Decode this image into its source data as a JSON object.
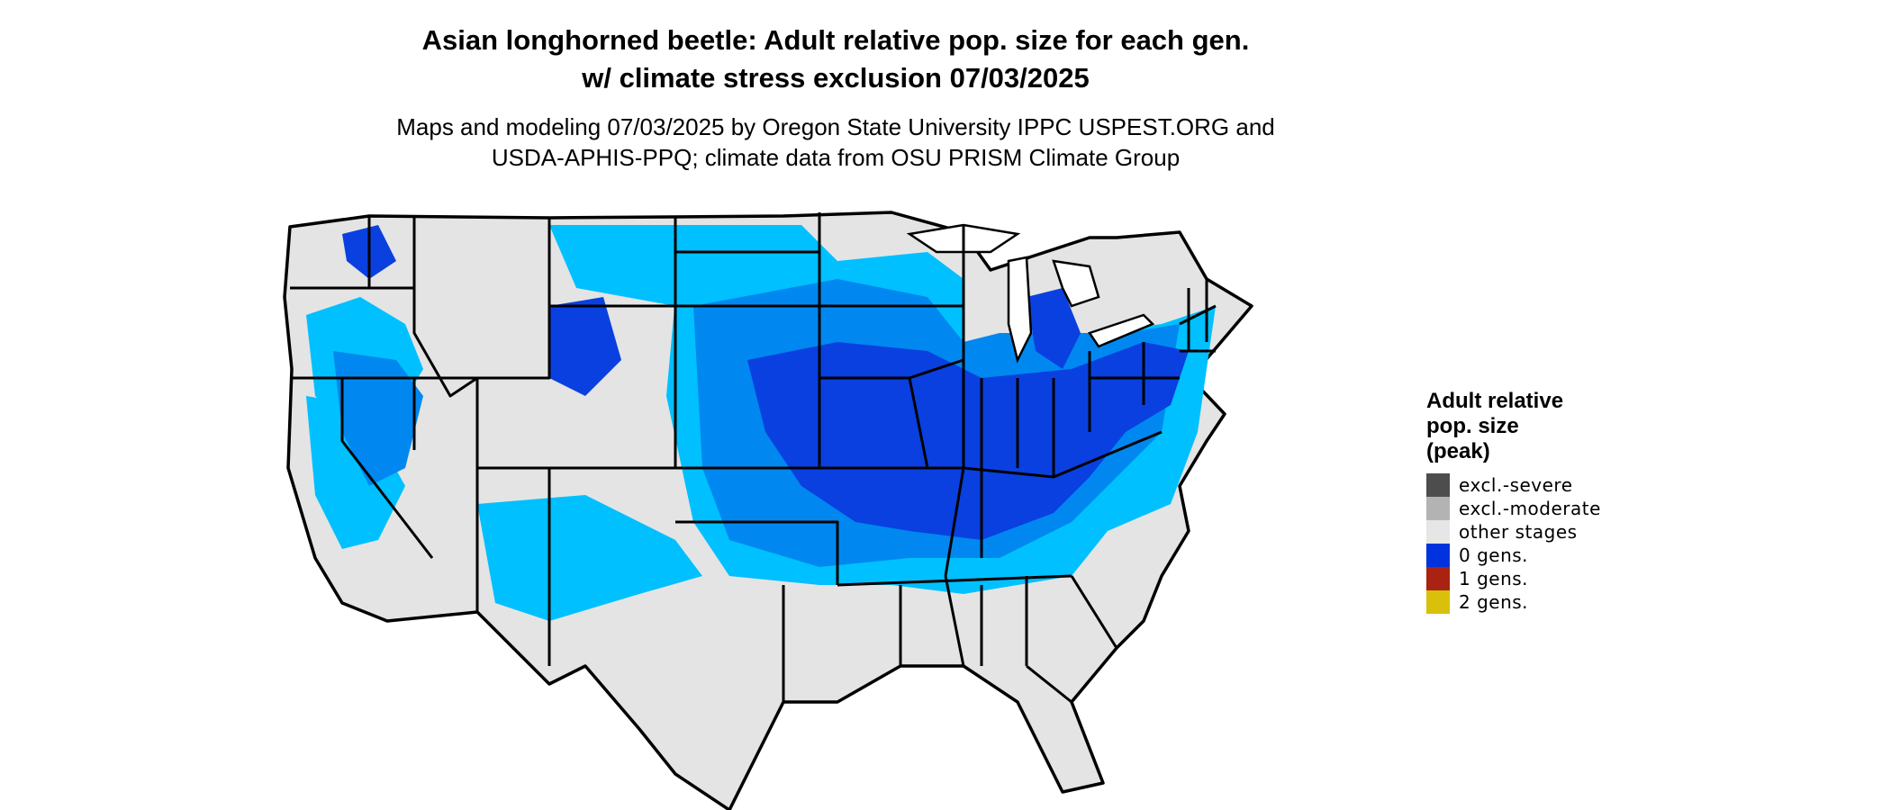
{
  "title": {
    "line1": "Asian longhorned beetle: Adult relative pop. size for each gen.",
    "line2": "w/ climate stress exclusion 07/03/2025"
  },
  "subtitle": {
    "line1": "Maps and modeling 07/03/2025 by Oregon State University IPPC USPEST.ORG and",
    "line2": "USDA-APHIS-PPQ; climate data from OSU PRISM Climate Group"
  },
  "legend": {
    "title_lines": [
      "Adult relative",
      "pop. size",
      "(peak)"
    ],
    "items": [
      {
        "label": "excl.-severe",
        "color": "#4d4d4d"
      },
      {
        "label": "excl.-moderate",
        "color": "#b3b3b3"
      },
      {
        "label": "other stages",
        "color": "#e6e6e6"
      },
      {
        "label": "0 gens.",
        "color": "#0033dd"
      },
      {
        "label": "1 gens.",
        "color": "#aa2211"
      },
      {
        "label": "2 gens.",
        "color": "#d9c00a"
      }
    ]
  },
  "map_colors": {
    "background_land": "#e4e4e4",
    "light_blue": "#00c0ff",
    "mid_blue": "#0088f0",
    "dark_blue": "#0a40e0",
    "border": "#000000"
  }
}
